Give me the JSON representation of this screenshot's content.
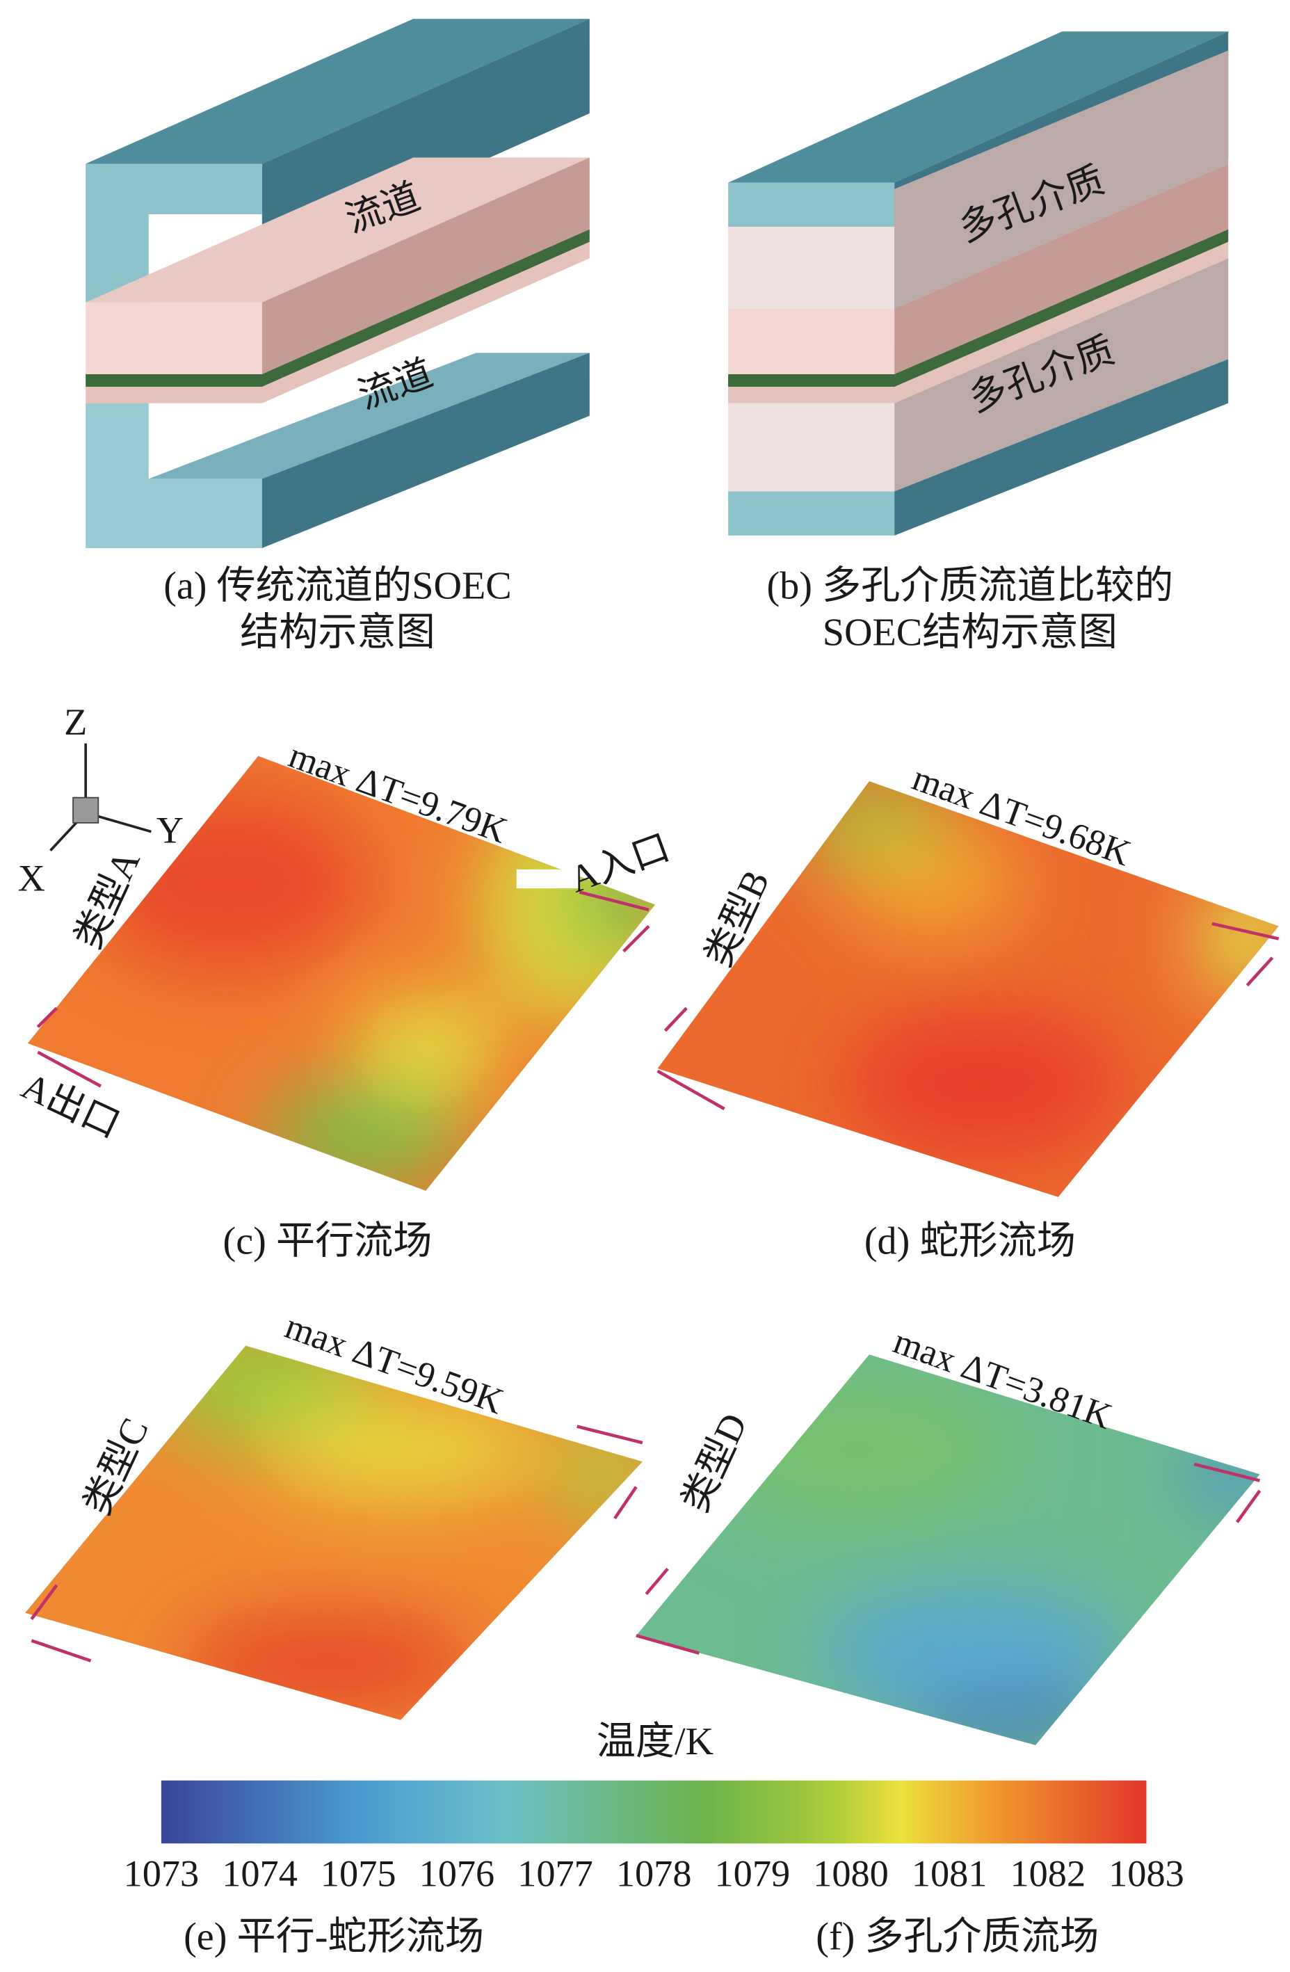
{
  "panel_a": {
    "labels": [
      "流道",
      "流道"
    ],
    "caption": [
      "(a) 传统流道的SOEC",
      "结构示意图"
    ]
  },
  "panel_b": {
    "labels": [
      "多孔介质",
      "多孔介质"
    ],
    "caption": [
      "(b) 多孔介质流道比较的",
      "SOEC结构示意图"
    ]
  },
  "axes": {
    "z": "Z",
    "y": "Y",
    "x": "X"
  },
  "panel_c": {
    "max_dt": "max ΔT=9.79K",
    "type": "类型A",
    "inlet": "A入口",
    "outlet": "A出口",
    "caption": "(c) 平行流场"
  },
  "panel_d": {
    "max_dt": "max ΔT=9.68K",
    "type": "类型B",
    "caption": "(d) 蛇形流场"
  },
  "panel_e": {
    "max_dt": "max ΔT=9.59K",
    "type": "类型C",
    "caption": "(e) 平行-蛇形流场"
  },
  "panel_f": {
    "max_dt": "max ΔT=3.81K",
    "type": "类型D",
    "caption": "(f) 多孔介质流场"
  },
  "colorbar": {
    "title": "温度/K",
    "ticks": [
      1073,
      1074,
      1075,
      1076,
      1077,
      1078,
      1079,
      1080,
      1081,
      1082,
      1083
    ]
  }
}
